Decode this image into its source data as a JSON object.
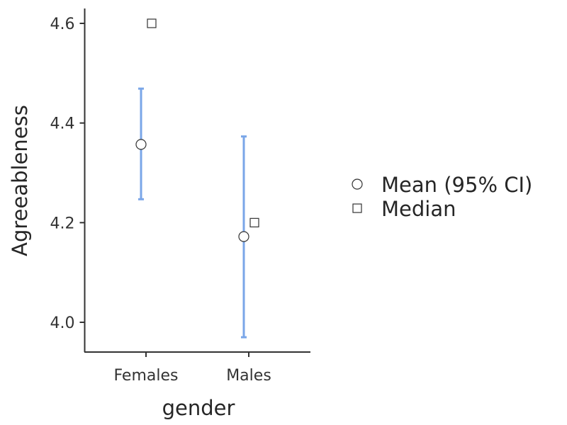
{
  "chart_data": {
    "type": "scatter",
    "xlabel": "gender",
    "ylabel": "Agreeableness",
    "categories": [
      "Females",
      "Males"
    ],
    "ylim": [
      3.935,
      4.63
    ],
    "yticks": [
      4.0,
      4.2,
      4.4,
      4.6
    ],
    "ytick_labels": [
      "4.0",
      "4.2",
      "4.4",
      "4.6"
    ],
    "series": [
      {
        "name": "Mean (95% CI)",
        "marker": "circle",
        "values": [
          4.357,
          4.172
        ],
        "ci_lower": [
          4.247,
          3.97
        ],
        "ci_upper": [
          4.469,
          4.373
        ]
      },
      {
        "name": "Median",
        "marker": "square",
        "values": [
          4.6,
          4.2
        ]
      }
    ],
    "errorbar_color": "#7aa6e8",
    "legend_position": "right",
    "grid": false
  }
}
